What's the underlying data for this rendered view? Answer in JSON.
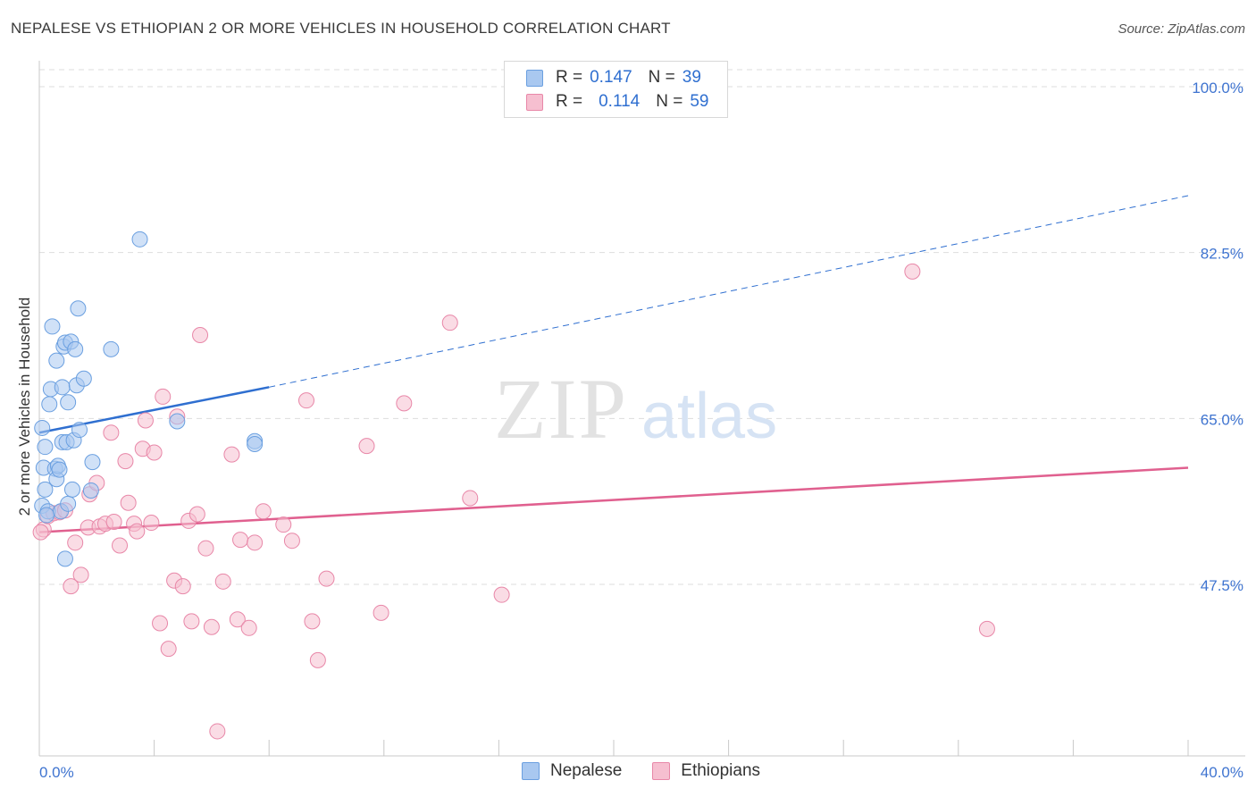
{
  "title": "NEPALESE VS ETHIOPIAN 2 OR MORE VEHICLES IN HOUSEHOLD CORRELATION CHART",
  "source": "Source: ZipAtlas.com",
  "colors": {
    "nepalese_fill": "#a9c8f0",
    "nepalese_stroke": "#6a9fe0",
    "nepalese_line": "#2f6fd0",
    "ethiopian_fill": "#f6bfd0",
    "ethiopian_stroke": "#e887a8",
    "ethiopian_line": "#e0608f",
    "axis_label": "#3f74d0",
    "grid": "#dddddd"
  },
  "legend": {
    "rows": [
      {
        "r_label": "R =",
        "r_value": "0.147",
        "n_label": "N =",
        "n_value": "39"
      },
      {
        "r_label": "R =",
        "r_value": "0.114",
        "n_label": "N =",
        "n_value": "59"
      }
    ]
  },
  "watermark": {
    "zip": "ZIP",
    "atlas": "atlas"
  },
  "chart_data": {
    "type": "scatter",
    "title": "NEPALESE VS ETHIOPIAN 2 OR MORE VEHICLES IN HOUSEHOLD CORRELATION CHART",
    "xlabel": "",
    "ylabel": "2 or more Vehicles in Household",
    "xlim": [
      0,
      40
    ],
    "ylim": [
      30.5,
      102
    ],
    "x_tick_labels": [
      "0.0%",
      "40.0%"
    ],
    "y_ticks": [
      47.5,
      65.0,
      82.5,
      100.0
    ],
    "y_tick_labels": [
      "47.5%",
      "65.0%",
      "82.5%",
      "100.0%"
    ],
    "grid": true,
    "series": [
      {
        "name": "Nepalese",
        "points": [
          [
            0.1,
            64.0
          ],
          [
            0.15,
            59.8
          ],
          [
            0.1,
            55.8
          ],
          [
            0.2,
            62.0
          ],
          [
            0.2,
            57.5
          ],
          [
            0.3,
            55.2
          ],
          [
            0.25,
            54.8
          ],
          [
            0.4,
            68.1
          ],
          [
            0.35,
            66.5
          ],
          [
            0.45,
            74.7
          ],
          [
            0.55,
            59.7
          ],
          [
            0.6,
            58.6
          ],
          [
            0.65,
            60.0
          ],
          [
            0.6,
            71.1
          ],
          [
            0.7,
            59.6
          ],
          [
            0.75,
            55.2
          ],
          [
            0.8,
            62.5
          ],
          [
            0.8,
            68.3
          ],
          [
            0.85,
            72.6
          ],
          [
            0.9,
            73.0
          ],
          [
            0.95,
            62.5
          ],
          [
            1.0,
            66.7
          ],
          [
            1.0,
            56.0
          ],
          [
            1.1,
            73.1
          ],
          [
            1.15,
            57.5
          ],
          [
            1.2,
            62.7
          ],
          [
            1.25,
            72.3
          ],
          [
            1.3,
            68.5
          ],
          [
            1.35,
            76.6
          ],
          [
            1.4,
            63.8
          ],
          [
            1.55,
            69.2
          ],
          [
            0.9,
            50.2
          ],
          [
            1.85,
            60.4
          ],
          [
            1.8,
            57.4
          ],
          [
            2.5,
            72.3
          ],
          [
            3.5,
            83.9
          ],
          [
            4.8,
            64.7
          ],
          [
            7.5,
            62.6
          ],
          [
            7.5,
            62.3
          ]
        ]
      },
      {
        "name": "Ethiopians",
        "points": [
          [
            0.15,
            53.3
          ],
          [
            0.3,
            54.7
          ],
          [
            0.5,
            55.0
          ],
          [
            0.7,
            55.1
          ],
          [
            0.9,
            55.3
          ],
          [
            1.1,
            47.3
          ],
          [
            1.25,
            51.9
          ],
          [
            1.45,
            48.5
          ],
          [
            1.7,
            53.5
          ],
          [
            1.75,
            57.0
          ],
          [
            2.0,
            58.2
          ],
          [
            2.1,
            53.6
          ],
          [
            2.3,
            53.9
          ],
          [
            2.5,
            63.5
          ],
          [
            2.6,
            54.1
          ],
          [
            2.8,
            51.6
          ],
          [
            3.0,
            60.5
          ],
          [
            3.1,
            56.1
          ],
          [
            3.3,
            53.9
          ],
          [
            3.4,
            53.1
          ],
          [
            3.6,
            61.8
          ],
          [
            3.7,
            64.8
          ],
          [
            3.9,
            54.0
          ],
          [
            4.0,
            61.4
          ],
          [
            4.2,
            43.4
          ],
          [
            4.3,
            67.3
          ],
          [
            4.5,
            40.7
          ],
          [
            4.7,
            47.9
          ],
          [
            4.8,
            65.2
          ],
          [
            5.0,
            47.3
          ],
          [
            5.2,
            54.2
          ],
          [
            5.3,
            43.6
          ],
          [
            5.5,
            54.9
          ],
          [
            5.6,
            73.8
          ],
          [
            5.8,
            51.3
          ],
          [
            6.0,
            43.0
          ],
          [
            6.2,
            32.0
          ],
          [
            6.4,
            47.8
          ],
          [
            6.7,
            61.2
          ],
          [
            6.9,
            43.8
          ],
          [
            7.0,
            52.2
          ],
          [
            7.3,
            42.9
          ],
          [
            7.5,
            51.9
          ],
          [
            7.8,
            55.2
          ],
          [
            8.5,
            53.8
          ],
          [
            8.8,
            52.1
          ],
          [
            9.3,
            66.9
          ],
          [
            9.5,
            43.6
          ],
          [
            9.7,
            39.5
          ],
          [
            10.0,
            48.1
          ],
          [
            11.4,
            62.1
          ],
          [
            11.9,
            44.5
          ],
          [
            12.7,
            66.6
          ],
          [
            14.3,
            75.1
          ],
          [
            15.0,
            56.6
          ],
          [
            16.1,
            46.4
          ],
          [
            30.4,
            80.5
          ],
          [
            33.0,
            42.8
          ],
          [
            0.05,
            53.0
          ]
        ]
      }
    ],
    "trendlines": [
      {
        "name": "Nepalese",
        "solid_x": [
          0,
          8
        ],
        "solid_y": [
          63.5,
          68.3
        ],
        "dashed_x": [
          8,
          40
        ],
        "dashed_y": [
          68.3,
          88.5
        ]
      },
      {
        "name": "Ethiopians",
        "x": [
          0,
          40
        ],
        "y": [
          53.0,
          59.8
        ]
      }
    ]
  },
  "bottom_legend": {
    "items": [
      "Nepalese",
      "Ethiopians"
    ]
  }
}
